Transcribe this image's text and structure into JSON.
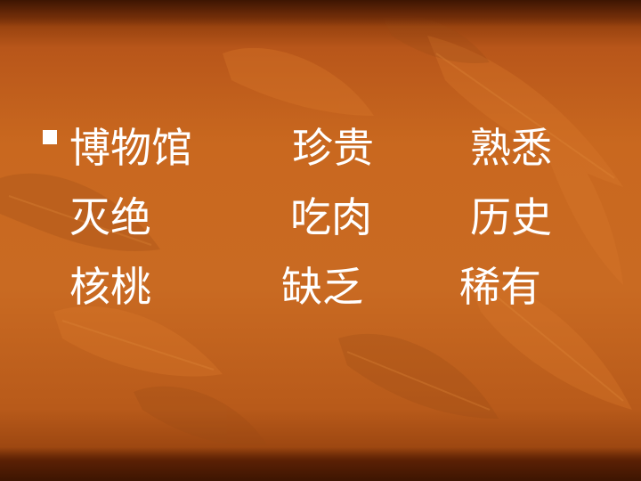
{
  "slide": {
    "bullet_icon": "square-bullet-icon",
    "rows": [
      [
        "博物馆",
        "珍贵",
        "熟悉"
      ],
      [
        "灭绝",
        "吃肉",
        "历史"
      ],
      [
        "核桃",
        "缺乏",
        "稀有"
      ]
    ]
  },
  "colors": {
    "background": "#c9681f",
    "text": "#ffffff"
  }
}
